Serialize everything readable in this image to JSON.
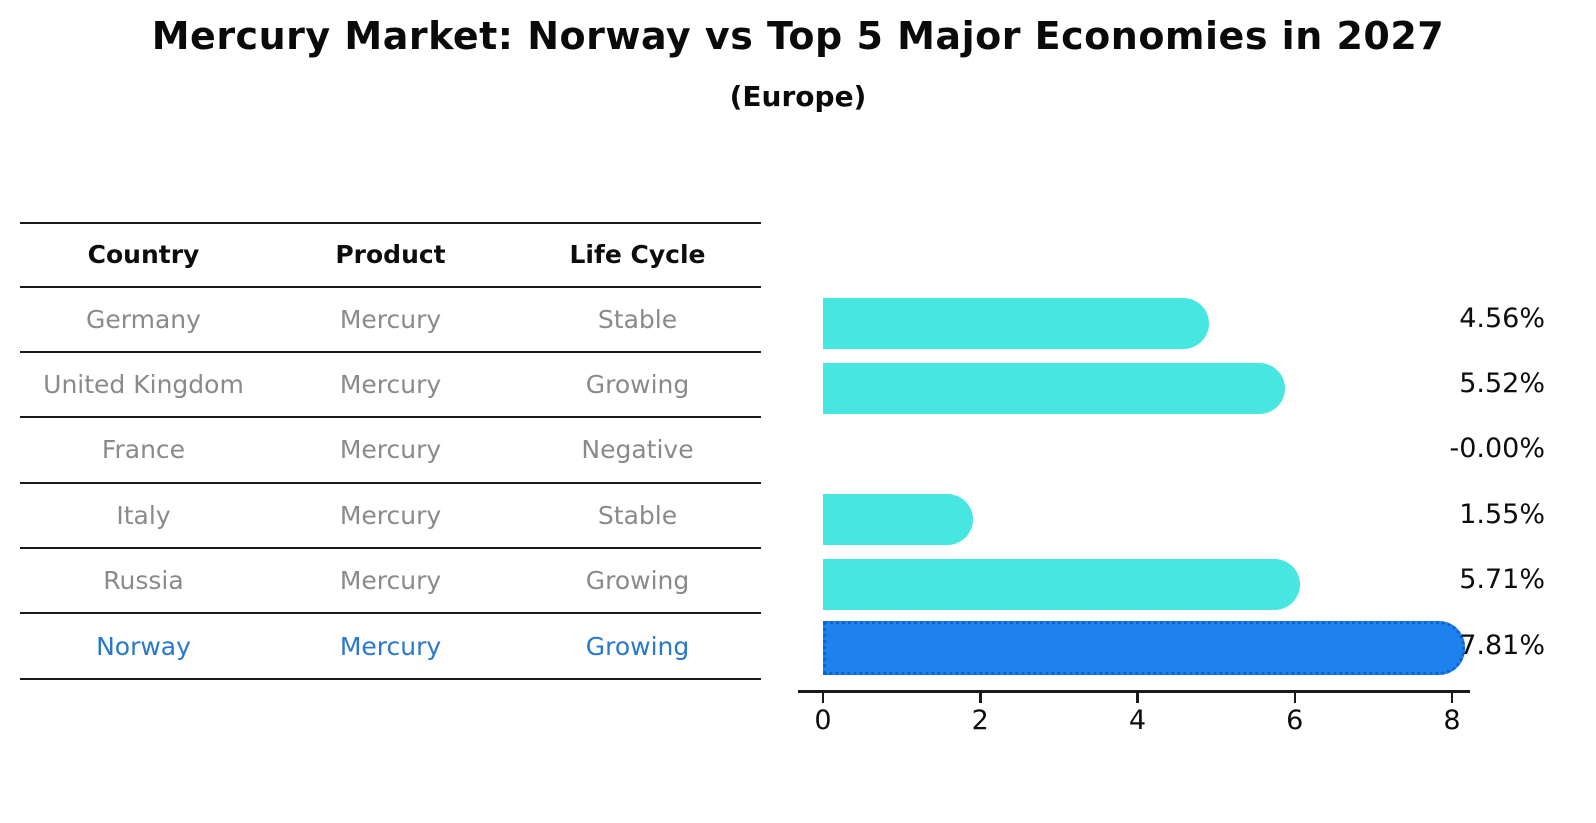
{
  "title": "Mercury Market: Norway vs Top 5 Major Economies in 2027",
  "subtitle": "(Europe)",
  "colors": {
    "bar_default": "#47E6E1",
    "bar_highlight": "#1E82EE",
    "highlight_text": "#2878CE",
    "table_text": "#8A8A8A",
    "line_color": "#1A1A1A"
  },
  "table": {
    "headers": [
      "Country",
      "Product",
      "Life Cycle"
    ],
    "rows": [
      {
        "country": "Germany",
        "product": "Mercury",
        "life_cycle": "Stable",
        "highlight": false
      },
      {
        "country": "United Kingdom",
        "product": "Mercury",
        "life_cycle": "Growing",
        "highlight": false
      },
      {
        "country": "France",
        "product": "Mercury",
        "life_cycle": "Negative",
        "highlight": false
      },
      {
        "country": "Italy",
        "product": "Mercury",
        "life_cycle": "Stable",
        "highlight": false
      },
      {
        "country": "Russia",
        "product": "Mercury",
        "life_cycle": "Growing",
        "highlight": false
      },
      {
        "country": "Norway",
        "product": "Mercury",
        "life_cycle": "Growing",
        "highlight": true
      }
    ]
  },
  "chart_data": {
    "type": "bar",
    "orientation": "horizontal",
    "title": "Mercury Market: Norway vs Top 5 Major Economies in 2027 (Europe)",
    "categories": [
      "Germany",
      "United Kingdom",
      "France",
      "Italy",
      "Russia",
      "Norway"
    ],
    "values": [
      4.56,
      5.52,
      -0.0,
      1.55,
      5.71,
      7.81
    ],
    "value_labels": [
      "4.56%",
      "5.52%",
      "-0.00%",
      "1.55%",
      "5.71%",
      "7.81%"
    ],
    "unit": "%",
    "xlabel": "",
    "ylabel": "",
    "xlim": [
      0,
      8.2
    ],
    "x_ticks": [
      0,
      2,
      4,
      6,
      8
    ],
    "highlight_index": 5,
    "grid": false,
    "legend": false
  }
}
